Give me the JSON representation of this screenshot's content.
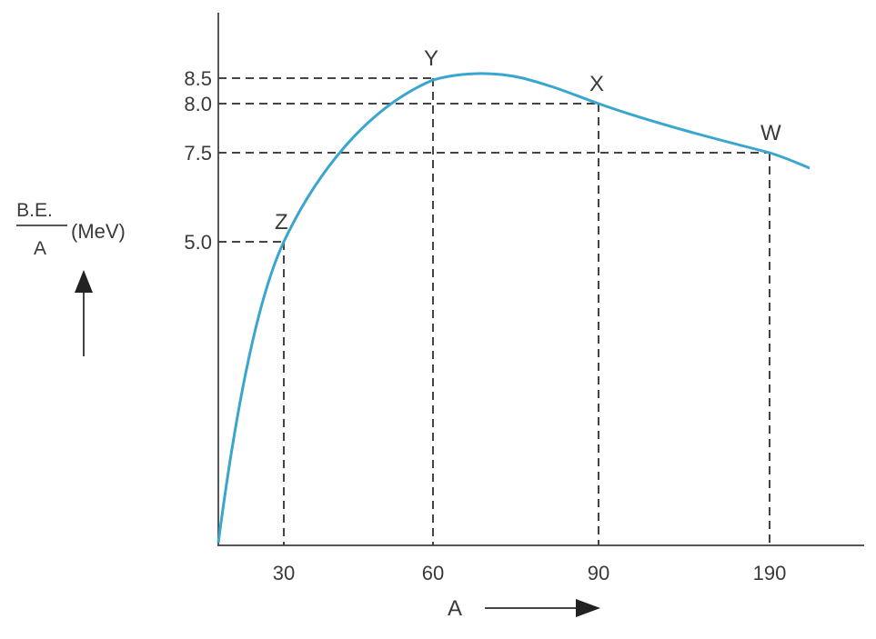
{
  "chart_data": {
    "type": "line",
    "ylabel_numerator": "B.E.",
    "ylabel_denominator": "A",
    "ylabel_unit": "(MeV)",
    "xlabel": "A",
    "x_ticks": [
      "30",
      "60",
      "90",
      "190"
    ],
    "y_ticks": [
      "8.5",
      "8.0",
      "7.5",
      "5.0"
    ],
    "points": [
      {
        "label": "Z",
        "x": 30,
        "y": 5.0
      },
      {
        "label": "Y",
        "x": 60,
        "y": 8.5
      },
      {
        "label": "X",
        "x": 90,
        "y": 8.0
      },
      {
        "label": "W",
        "x": 190,
        "y": 7.5
      }
    ],
    "curve_color": "#3aa6cf",
    "grid": false
  }
}
